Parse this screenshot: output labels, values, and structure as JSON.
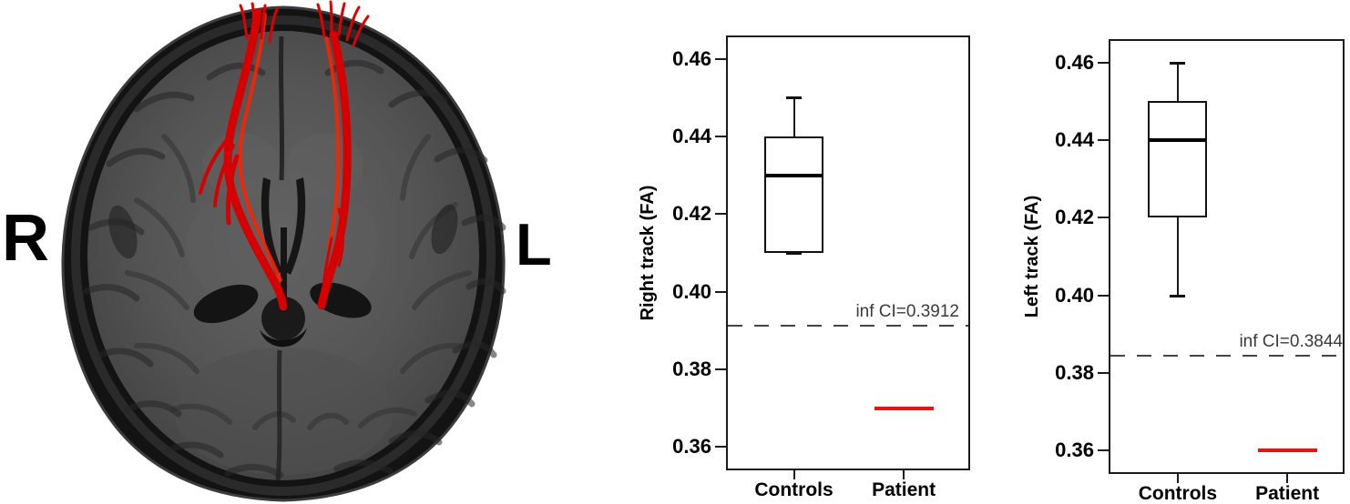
{
  "brain_panel": {
    "image_name": "axial-brain-mri-tractography",
    "orientation_labels": {
      "right": "R",
      "left": "L"
    },
    "tract_color": "#dd0000"
  },
  "chart_data": [
    {
      "type": "box",
      "title": "",
      "xlabel": "",
      "ylabel": "Right track (FA)",
      "categories": [
        "Controls",
        "Patient"
      ],
      "ytick_values": [
        0.46,
        0.44,
        0.42,
        0.4,
        0.38,
        0.36
      ],
      "ytick_labels": [
        "0.46",
        "0.44",
        "0.42",
        "0.40",
        "0.38",
        "0.36"
      ],
      "ylim": [
        0.354,
        0.466
      ],
      "grid": false,
      "series": [
        {
          "name": "Controls",
          "style": "box",
          "box": {
            "min": 0.41,
            "q1": 0.41,
            "median": 0.43,
            "q3": 0.44,
            "max": 0.45
          },
          "color": "#111111"
        },
        {
          "name": "Patient",
          "style": "line",
          "value": 0.37,
          "color": "#f01010"
        }
      ],
      "reference_line": {
        "value": 0.3912,
        "label": "inf CI=0.3912",
        "style": "dashed",
        "color": "#444444"
      }
    },
    {
      "type": "box",
      "title": "",
      "xlabel": "",
      "ylabel": "Left track (FA)",
      "categories": [
        "Controls",
        "Patient"
      ],
      "ytick_values": [
        0.46,
        0.44,
        0.42,
        0.4,
        0.38,
        0.36
      ],
      "ytick_labels": [
        "0.46",
        "0.44",
        "0.42",
        "0.40",
        "0.38",
        "0.36"
      ],
      "ylim": [
        0.354,
        0.466
      ],
      "grid": false,
      "series": [
        {
          "name": "Controls",
          "style": "box",
          "box": {
            "min": 0.4,
            "q1": 0.42,
            "median": 0.44,
            "q3": 0.45,
            "max": 0.46
          },
          "color": "#111111"
        },
        {
          "name": "Patient",
          "style": "line",
          "value": 0.36,
          "color": "#f01010"
        }
      ],
      "reference_line": {
        "value": 0.3844,
        "label": "inf CI=0.3844",
        "style": "dashed",
        "color": "#444444"
      }
    }
  ]
}
